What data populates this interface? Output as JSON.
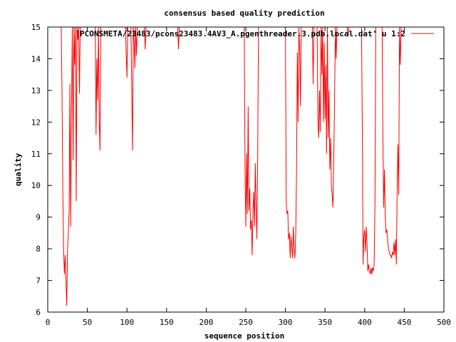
{
  "chart_data": {
    "type": "line",
    "title": "consensus based quality prediction",
    "xlabel": "sequence position",
    "ylabel": "quality",
    "xlim": [
      0,
      500
    ],
    "ylim": [
      6,
      15
    ],
    "xticks": [
      0,
      50,
      100,
      150,
      200,
      250,
      300,
      350,
      400,
      450,
      500
    ],
    "yticks": [
      6,
      7,
      8,
      9,
      10,
      11,
      12,
      13,
      14,
      15
    ],
    "grid": false,
    "legend_position": "top-right",
    "series": [
      {
        "name": "'PCONSMETA/23483/pcons23483.4AV3_A.pgenthreader.3.pdb.local.dat' u 1:2",
        "color": "#ff0000",
        "points": [
          [
            1,
            15
          ],
          [
            17,
            15
          ],
          [
            18,
            13.0
          ],
          [
            19,
            10.0
          ],
          [
            20,
            8.0
          ],
          [
            21,
            7.2
          ],
          [
            22,
            7.8
          ],
          [
            23,
            7.0
          ],
          [
            24,
            6.2
          ],
          [
            25,
            8.0
          ],
          [
            26,
            8.5
          ],
          [
            27,
            9.2
          ],
          [
            28,
            13.2
          ],
          [
            29,
            8.7
          ],
          [
            30,
            12.5
          ],
          [
            31,
            15
          ],
          [
            32,
            10.8
          ],
          [
            33,
            15
          ],
          [
            34,
            13.8
          ],
          [
            35,
            15
          ],
          [
            36,
            9.5
          ],
          [
            37,
            15
          ],
          [
            38,
            14.6
          ],
          [
            39,
            15
          ],
          [
            40,
            12.9
          ],
          [
            41,
            15
          ],
          [
            60,
            15
          ],
          [
            61,
            11.6
          ],
          [
            62,
            14.0
          ],
          [
            63,
            12.7
          ],
          [
            64,
            15
          ],
          [
            65,
            12.0
          ],
          [
            66,
            11.1
          ],
          [
            67,
            15
          ],
          [
            98,
            15
          ],
          [
            99,
            14.2
          ],
          [
            100,
            13.4
          ],
          [
            101,
            15
          ],
          [
            105,
            15
          ],
          [
            106,
            13.0
          ],
          [
            107,
            11.1
          ],
          [
            108,
            15
          ],
          [
            109,
            14.6
          ],
          [
            110,
            13.7
          ],
          [
            111,
            15
          ],
          [
            112,
            14.1
          ],
          [
            113,
            15
          ],
          [
            122,
            15
          ],
          [
            123,
            14.3
          ],
          [
            124,
            15
          ],
          [
            164,
            15
          ],
          [
            165,
            14.3
          ],
          [
            166,
            15
          ],
          [
            248,
            15
          ],
          [
            249,
            10.5
          ],
          [
            250,
            8.7
          ],
          [
            251,
            11.0
          ],
          [
            252,
            9.1
          ],
          [
            253,
            12.5
          ],
          [
            254,
            9.2
          ],
          [
            255,
            9.9
          ],
          [
            256,
            8.6
          ],
          [
            257,
            8.9
          ],
          [
            258,
            7.8
          ],
          [
            259,
            9.2
          ],
          [
            260,
            9.8
          ],
          [
            261,
            8.7
          ],
          [
            262,
            10.7
          ],
          [
            263,
            9.3
          ],
          [
            264,
            8.3
          ],
          [
            265,
            11.0
          ],
          [
            266,
            15
          ],
          [
            300,
            15
          ],
          [
            301,
            9.5
          ],
          [
            302,
            9.1
          ],
          [
            303,
            9.2
          ],
          [
            304,
            8.3
          ],
          [
            305,
            8.5
          ],
          [
            306,
            7.7
          ],
          [
            307,
            8.4
          ],
          [
            308,
            8.1
          ],
          [
            309,
            7.7
          ],
          [
            310,
            8.7
          ],
          [
            311,
            8.0
          ],
          [
            312,
            7.7
          ],
          [
            313,
            8.5
          ],
          [
            314,
            10.5
          ],
          [
            315,
            14.2
          ],
          [
            316,
            12.0
          ],
          [
            317,
            15
          ],
          [
            318,
            14.3
          ],
          [
            319,
            12.5
          ],
          [
            320,
            15
          ],
          [
            334,
            15
          ],
          [
            335,
            13.2
          ],
          [
            336,
            15
          ],
          [
            340,
            15
          ],
          [
            341,
            12.0
          ],
          [
            342,
            11.5
          ],
          [
            343,
            13.0
          ],
          [
            344,
            11.7
          ],
          [
            345,
            15
          ],
          [
            346,
            13.5
          ],
          [
            347,
            15
          ],
          [
            348,
            12.0
          ],
          [
            349,
            14.5
          ],
          [
            350,
            12.1
          ],
          [
            351,
            13.8
          ],
          [
            352,
            11.0
          ],
          [
            353,
            15
          ],
          [
            354,
            11.5
          ],
          [
            355,
            13.0
          ],
          [
            356,
            10.5
          ],
          [
            357,
            11.5
          ],
          [
            358,
            10.0
          ],
          [
            359,
            9.7
          ],
          [
            360,
            9.3
          ],
          [
            361,
            10.8
          ],
          [
            362,
            12.5
          ],
          [
            363,
            15
          ],
          [
            364,
            14.0
          ],
          [
            365,
            15
          ],
          [
            378,
            15
          ],
          [
            379,
            14.7
          ],
          [
            380,
            15
          ],
          [
            396,
            15
          ],
          [
            397,
            11.8
          ],
          [
            398,
            7.5
          ],
          [
            399,
            8.4
          ],
          [
            400,
            8.6
          ],
          [
            401,
            7.9
          ],
          [
            402,
            8.7
          ],
          [
            403,
            8.2
          ],
          [
            404,
            7.3
          ],
          [
            405,
            7.5
          ],
          [
            406,
            7.3
          ],
          [
            407,
            7.2
          ],
          [
            408,
            7.4
          ],
          [
            409,
            7.2
          ],
          [
            410,
            7.4
          ],
          [
            411,
            7.3
          ],
          [
            412,
            7.5
          ],
          [
            413,
            9.5
          ],
          [
            414,
            15
          ],
          [
            422,
            15
          ],
          [
            423,
            11.5
          ],
          [
            424,
            9.3
          ],
          [
            425,
            10.5
          ],
          [
            426,
            9.0
          ],
          [
            427,
            8.5
          ],
          [
            428,
            8.6
          ],
          [
            429,
            8.3
          ],
          [
            430,
            8.0
          ],
          [
            431,
            7.9
          ],
          [
            432,
            7.8
          ],
          [
            433,
            7.8
          ],
          [
            434,
            7.7
          ],
          [
            435,
            7.9
          ],
          [
            436,
            7.8
          ],
          [
            437,
            8.2
          ],
          [
            438,
            7.8
          ],
          [
            439,
            8.3
          ],
          [
            440,
            7.5
          ],
          [
            441,
            9.9
          ],
          [
            442,
            11.3
          ],
          [
            443,
            9.7
          ],
          [
            444,
            15
          ],
          [
            445,
            13.8
          ],
          [
            446,
            15
          ],
          [
            450,
            15
          ]
        ]
      }
    ]
  }
}
